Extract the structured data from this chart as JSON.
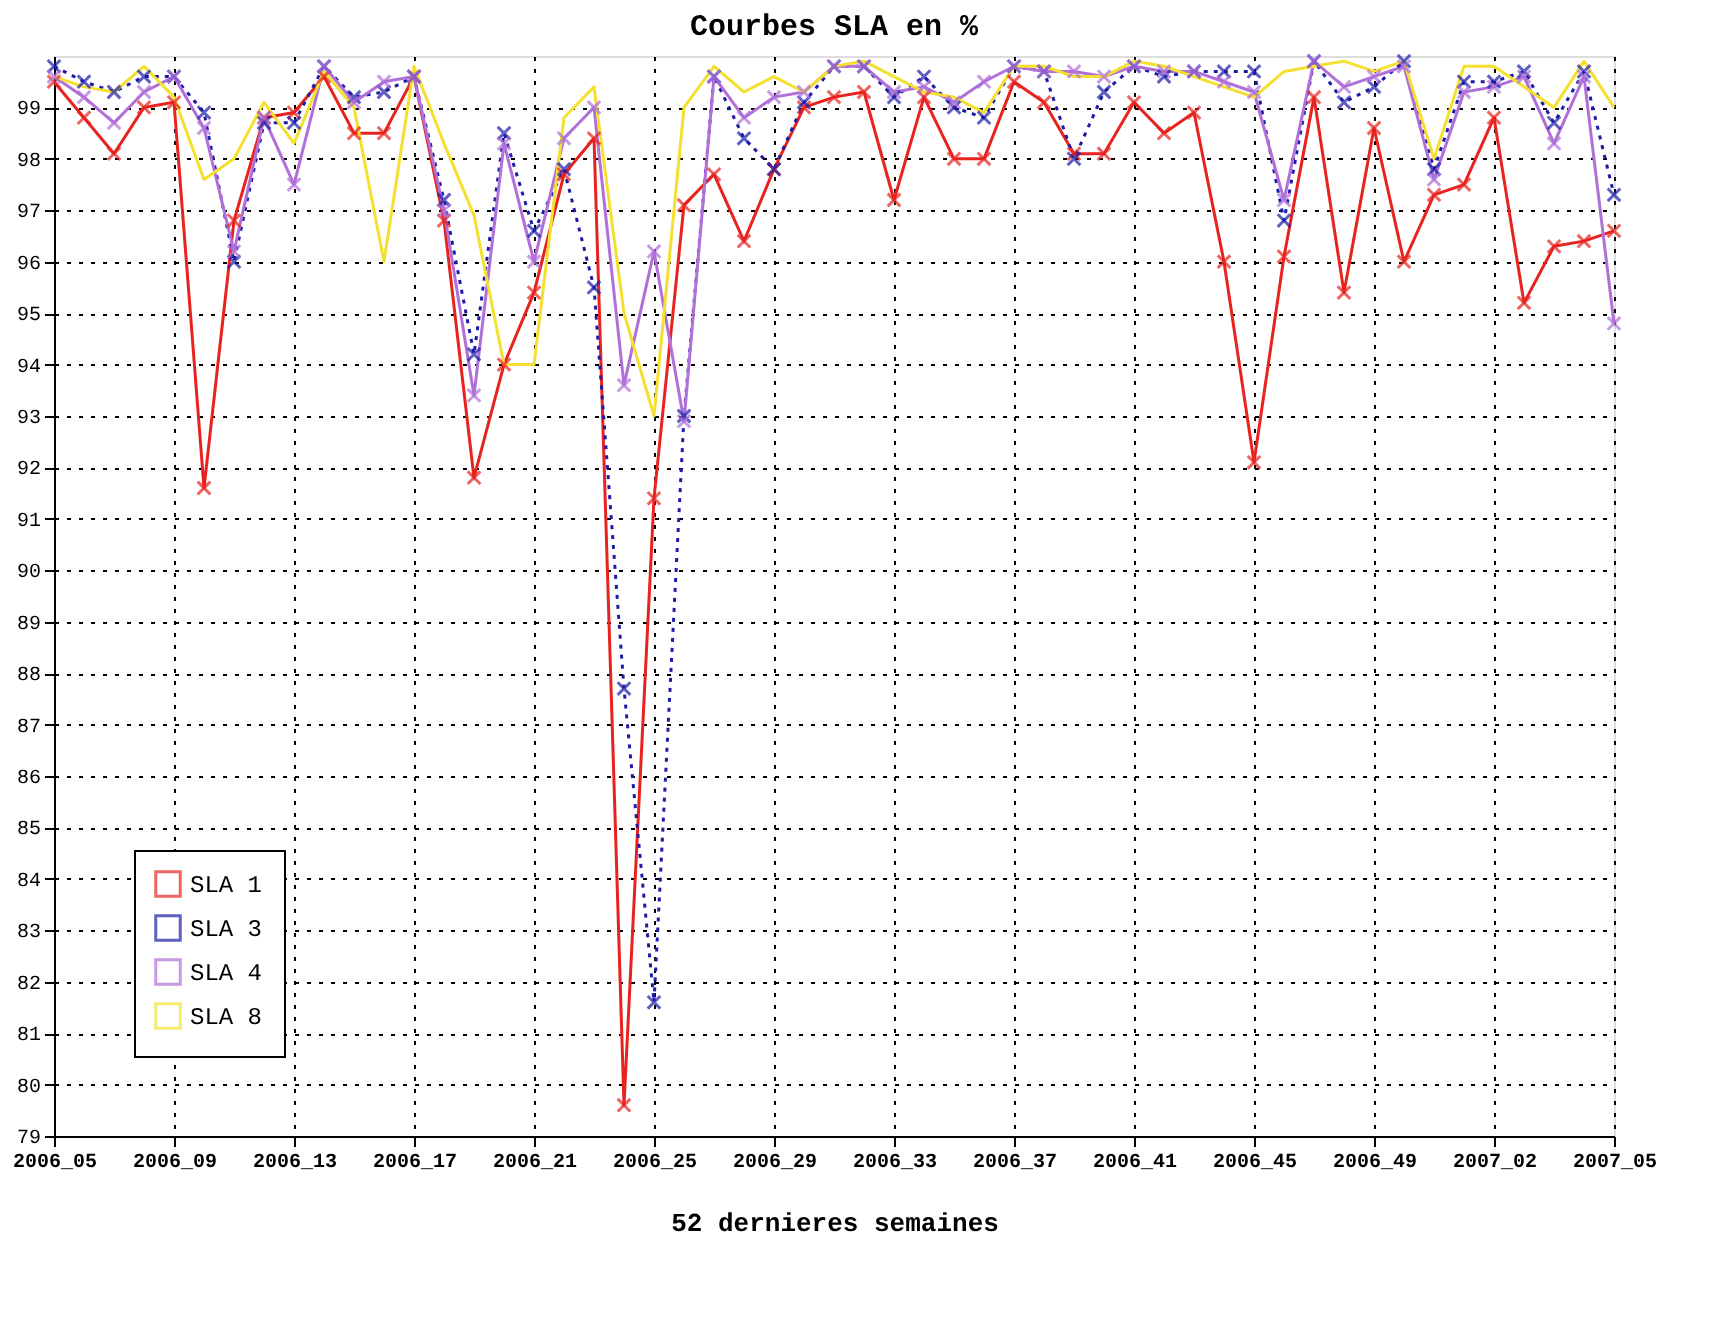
{
  "chart_data": {
    "type": "line",
    "title": "Courbes SLA en %",
    "xlabel": "52 dernieres semaines",
    "categories": [
      "2006_05",
      null,
      null,
      null,
      "2006_09",
      null,
      null,
      null,
      "2006_13",
      null,
      null,
      null,
      "2006_17",
      null,
      null,
      null,
      "2006_21",
      null,
      null,
      null,
      "2006_25",
      null,
      null,
      null,
      "2006_29",
      null,
      null,
      null,
      "2006_33",
      null,
      null,
      null,
      "2006_37",
      null,
      null,
      null,
      "2006_41",
      null,
      null,
      null,
      "2006_45",
      null,
      null,
      null,
      "2006_49",
      null,
      null,
      null,
      "2007_02",
      null,
      null,
      null,
      "2007_05"
    ],
    "ylim": [
      79,
      100
    ],
    "yticks": [
      79,
      80,
      81,
      82,
      83,
      84,
      85,
      86,
      87,
      88,
      89,
      90,
      91,
      92,
      93,
      94,
      95,
      96,
      97,
      98,
      99
    ],
    "grid": true,
    "legend": "bottom left",
    "series": [
      {
        "name": "SLA 1",
        "color": "#e8231f",
        "marker": "cross",
        "line_style": "solid",
        "values": [
          99.5,
          98.8,
          98.1,
          99.0,
          99.1,
          91.6,
          96.8,
          98.8,
          98.9,
          99.6,
          98.5,
          98.5,
          99.6,
          96.8,
          91.8,
          94.0,
          95.4,
          97.7,
          98.4,
          79.6,
          91.4,
          97.1,
          97.7,
          96.4,
          97.8,
          99.0,
          99.2,
          99.3,
          97.2,
          99.2,
          98.0,
          98.0,
          99.5,
          99.1,
          98.1,
          98.1,
          99.1,
          98.5,
          98.9,
          96.0,
          92.1,
          96.1,
          99.2,
          95.4,
          98.6,
          96.0,
          97.3,
          97.5,
          98.8,
          95.2,
          96.3,
          96.4,
          96.6
        ]
      },
      {
        "name": "SLA 3",
        "color": "#1c1ca8",
        "marker": "cross",
        "line_style": "dotted",
        "values": [
          99.8,
          99.5,
          99.3,
          99.6,
          99.6,
          98.9,
          96.0,
          98.7,
          98.7,
          99.8,
          99.2,
          99.3,
          99.6,
          97.2,
          94.2,
          98.5,
          96.6,
          97.8,
          95.5,
          87.7,
          81.6,
          93.0,
          99.6,
          98.4,
          97.8,
          99.1,
          99.8,
          99.8,
          99.2,
          99.6,
          99.0,
          98.8,
          99.8,
          99.7,
          98.0,
          99.3,
          99.8,
          99.6,
          99.7,
          99.7,
          99.7,
          96.8,
          99.9,
          99.1,
          99.4,
          99.9,
          97.8,
          99.5,
          99.5,
          99.7,
          98.7,
          99.7,
          97.3
        ]
      },
      {
        "name": "SLA 4",
        "color": "#b070d8",
        "marker": "cross",
        "line_style": "solid",
        "values": [
          99.6,
          99.2,
          98.7,
          99.3,
          99.6,
          98.6,
          96.2,
          98.8,
          97.5,
          99.8,
          99.1,
          99.5,
          99.6,
          97.0,
          93.4,
          98.3,
          96.0,
          98.4,
          99.0,
          93.6,
          96.2,
          92.9,
          99.6,
          98.8,
          99.2,
          99.3,
          99.8,
          99.8,
          99.3,
          99.4,
          99.1,
          99.5,
          99.8,
          99.7,
          99.7,
          99.6,
          99.8,
          99.7,
          99.7,
          99.5,
          99.3,
          97.2,
          99.9,
          99.4,
          99.6,
          99.8,
          97.6,
          99.3,
          99.4,
          99.6,
          98.3,
          99.6,
          94.8
        ]
      },
      {
        "name": "SLA 8",
        "color": "#f5e030",
        "marker": "none",
        "line_style": "solid",
        "values": [
          99.6,
          99.4,
          99.3,
          99.8,
          99.2,
          97.6,
          98.0,
          99.1,
          98.3,
          99.7,
          99.0,
          96.0,
          99.8,
          98.3,
          96.9,
          94.0,
          94.0,
          98.8,
          99.4,
          95.0,
          93.0,
          99.0,
          99.8,
          99.3,
          99.6,
          99.3,
          99.8,
          99.9,
          99.6,
          99.3,
          99.2,
          98.9,
          99.8,
          99.8,
          99.6,
          99.6,
          99.9,
          99.8,
          99.6,
          99.4,
          99.2,
          99.7,
          99.8,
          99.9,
          99.7,
          99.9,
          98.0,
          99.8,
          99.8,
          99.4,
          99.0,
          99.9,
          99.0
        ]
      }
    ]
  }
}
